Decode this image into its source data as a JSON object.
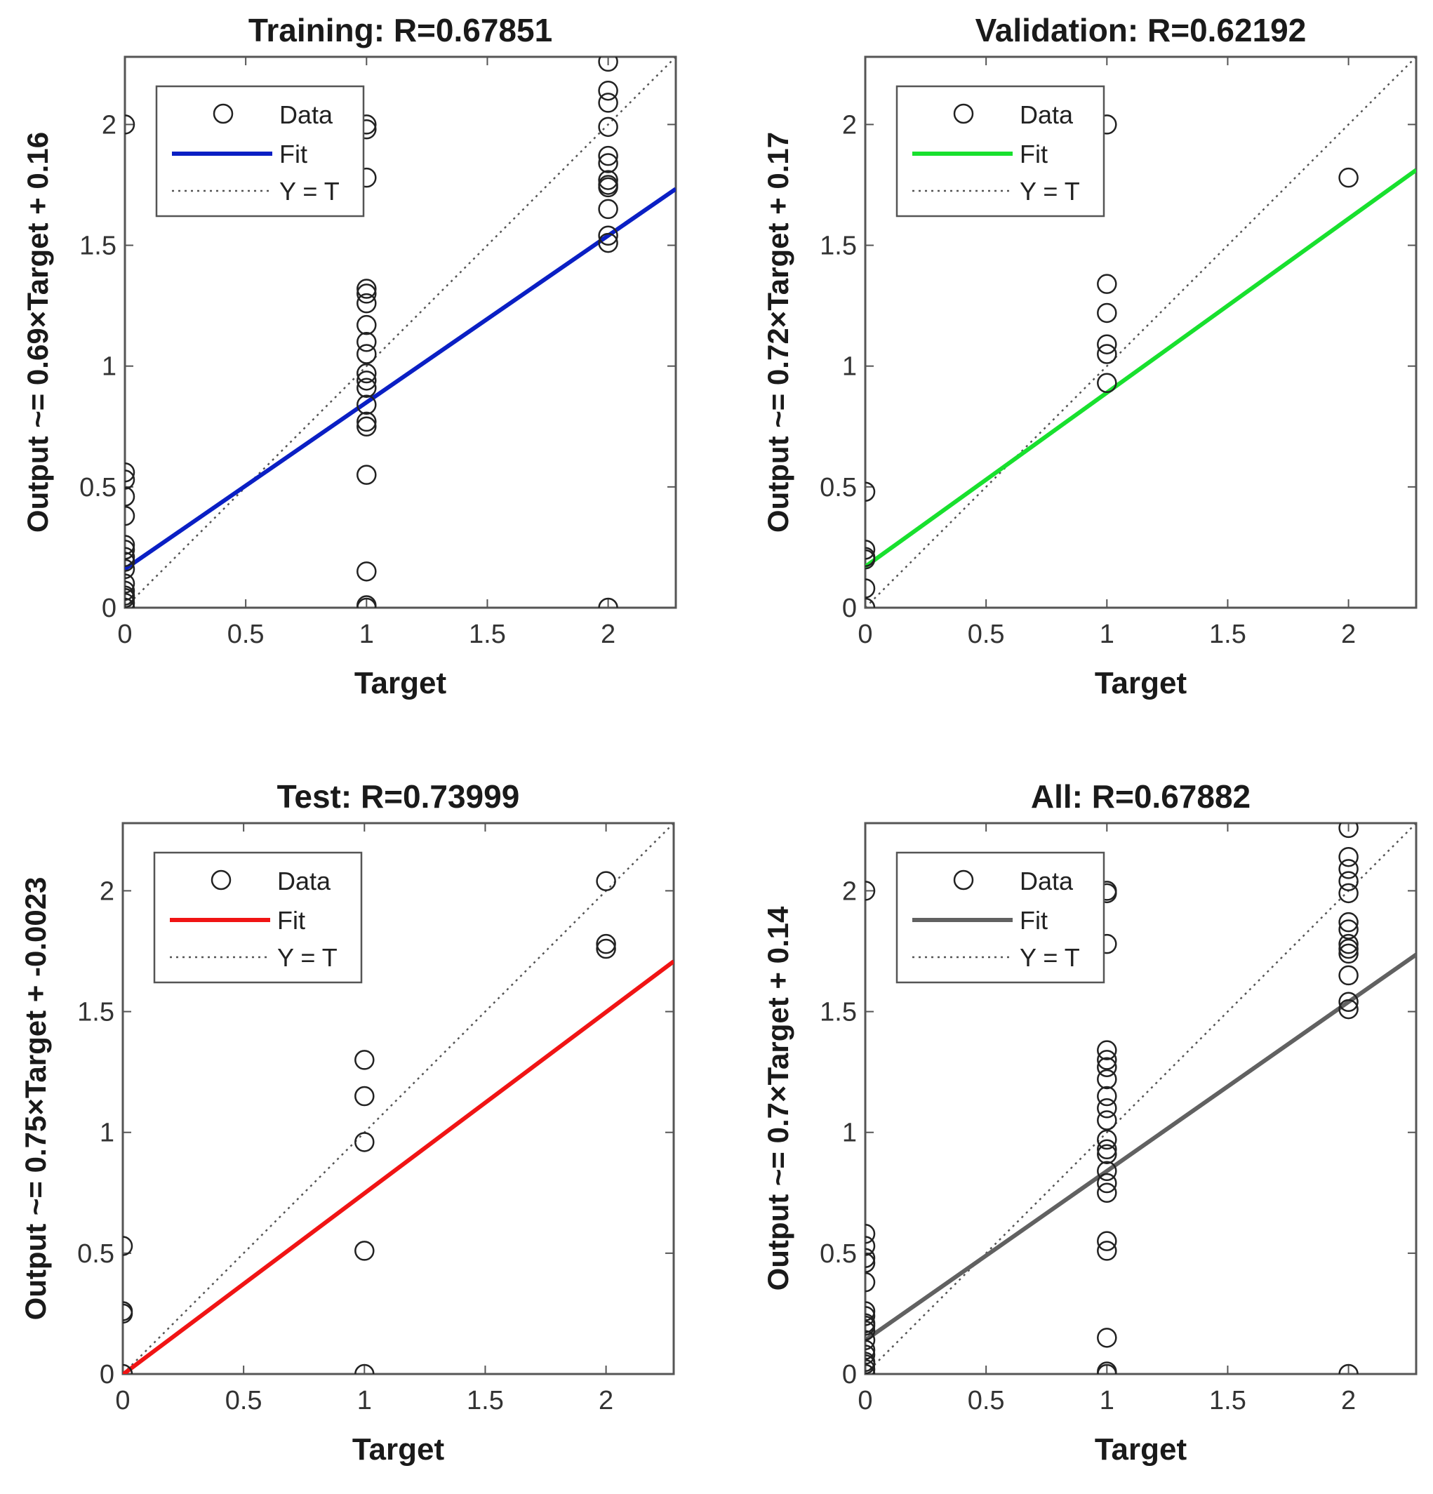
{
  "figure": {
    "layout": "2x2 regression plots"
  },
  "legend_labels": {
    "data": "Data",
    "fit": "Fit",
    "identity": "Y = T"
  },
  "colors": {
    "training_fit": "#0a1fc4",
    "validation_fit": "#18e02e",
    "test_fit": "#f01414",
    "all_fit": "#616161",
    "marker": "#222222",
    "identity": "#555555",
    "axes": "#555555"
  },
  "chart_data": [
    {
      "type": "scatter",
      "title": "Training: R=0.67851",
      "xlabel": "Target",
      "ylabel": "Output ~= 0.69×Target + 0.16",
      "xlim": [
        0,
        2.28
      ],
      "ylim": [
        0,
        2.28
      ],
      "xticks": [
        0,
        0.5,
        1,
        1.5,
        2
      ],
      "xtick_labels": [
        "0",
        "0.5",
        "1",
        "1.5",
        "2"
      ],
      "yticks": [
        0,
        0.5,
        1,
        1.5,
        2
      ],
      "ytick_labels": [
        "0",
        "0.5",
        "1",
        "1.5",
        "2"
      ],
      "fit": {
        "slope": 0.69,
        "intercept": 0.16,
        "color": "#0a1fc4"
      },
      "series": [
        {
          "name": "Data",
          "x": [
            0,
            0,
            0,
            0,
            0,
            0,
            0,
            0,
            0,
            0,
            0,
            0,
            0,
            0,
            0,
            0,
            1,
            1,
            1,
            1,
            1,
            1,
            1,
            1,
            1,
            1,
            1,
            1,
            1,
            1,
            1,
            1,
            1,
            1,
            1,
            2,
            2,
            2,
            2,
            2,
            2,
            2,
            2,
            2,
            2,
            2,
            2,
            2
          ],
          "y": [
            2.0,
            0.56,
            0.53,
            0.46,
            0.38,
            0.26,
            0.24,
            0.21,
            0.19,
            0.16,
            0.1,
            0.07,
            0.05,
            0.04,
            0.02,
            0.0,
            2.0,
            1.98,
            1.78,
            1.32,
            1.3,
            1.26,
            1.17,
            1.1,
            1.05,
            0.97,
            0.94,
            0.91,
            0.84,
            0.77,
            0.75,
            0.55,
            0.15,
            0.01,
            0.0,
            2.26,
            2.14,
            2.09,
            1.99,
            1.87,
            1.84,
            1.77,
            1.75,
            1.74,
            1.65,
            1.54,
            1.51,
            0.0
          ]
        }
      ]
    },
    {
      "type": "scatter",
      "title": "Validation: R=0.62192",
      "xlabel": "Target",
      "ylabel": "Output ~= 0.72×Target + 0.17",
      "xlim": [
        0,
        2.28
      ],
      "ylim": [
        0,
        2.28
      ],
      "xticks": [
        0,
        0.5,
        1,
        1.5,
        2
      ],
      "xtick_labels": [
        "0",
        "0.5",
        "1",
        "1.5",
        "2"
      ],
      "yticks": [
        0,
        0.5,
        1,
        1.5,
        2
      ],
      "ytick_labels": [
        "0",
        "0.5",
        "1",
        "1.5",
        "2"
      ],
      "fit": {
        "slope": 0.72,
        "intercept": 0.17,
        "color": "#18e02e"
      },
      "series": [
        {
          "name": "Data",
          "x": [
            0,
            0,
            0,
            0,
            0,
            0,
            1,
            1,
            1,
            1,
            1,
            1,
            2
          ],
          "y": [
            0.48,
            0.24,
            0.21,
            0.2,
            0.08,
            0.0,
            2.0,
            1.34,
            1.22,
            1.09,
            1.05,
            0.93,
            1.78
          ]
        }
      ]
    },
    {
      "type": "scatter",
      "title": "Test: R=0.73999",
      "xlabel": "Target",
      "ylabel": "Output ~= 0.75×Target + -0.0023",
      "xlim": [
        0,
        2.28
      ],
      "ylim": [
        0,
        2.28
      ],
      "xticks": [
        0,
        0.5,
        1,
        1.5,
        2
      ],
      "xtick_labels": [
        "0",
        "0.5",
        "1",
        "1.5",
        "2"
      ],
      "yticks": [
        0,
        0.5,
        1,
        1.5,
        2
      ],
      "ytick_labels": [
        "0",
        "0.5",
        "1",
        "1.5",
        "2"
      ],
      "fit": {
        "slope": 0.75,
        "intercept": -0.0023,
        "color": "#f01414"
      },
      "series": [
        {
          "name": "Data",
          "x": [
            0,
            0,
            0,
            0,
            1,
            1,
            1,
            1,
            1,
            2,
            2,
            2
          ],
          "y": [
            0.53,
            0.26,
            0.25,
            0.0,
            1.3,
            1.15,
            0.96,
            0.51,
            0.0,
            2.04,
            1.78,
            1.76
          ]
        }
      ]
    },
    {
      "type": "scatter",
      "title": "All: R=0.67882",
      "xlabel": "Target",
      "ylabel": "Output ~= 0.7×Target + 0.14",
      "xlim": [
        0,
        2.28
      ],
      "ylim": [
        0,
        2.28
      ],
      "xticks": [
        0,
        0.5,
        1,
        1.5,
        2
      ],
      "xtick_labels": [
        "0",
        "0.5",
        "1",
        "1.5",
        "2"
      ],
      "yticks": [
        0,
        0.5,
        1,
        1.5,
        2
      ],
      "ytick_labels": [
        "0",
        "0.5",
        "1",
        "1.5",
        "2"
      ],
      "fit": {
        "slope": 0.7,
        "intercept": 0.14,
        "color": "#616161"
      },
      "series": [
        {
          "name": "Data",
          "x": [
            0,
            0,
            0,
            0,
            0,
            0,
            0,
            0,
            0,
            0,
            0,
            0,
            0,
            0,
            0,
            0,
            0,
            0,
            1,
            1,
            1,
            1,
            1,
            1,
            1,
            1,
            1,
            1,
            1,
            1,
            1,
            1,
            1,
            1,
            1,
            1,
            1,
            1,
            1,
            2,
            2,
            2,
            2,
            2,
            2,
            2,
            2,
            2,
            2,
            2,
            2,
            2,
            2
          ],
          "y": [
            2.0,
            0.58,
            0.53,
            0.48,
            0.46,
            0.38,
            0.26,
            0.24,
            0.21,
            0.2,
            0.18,
            0.14,
            0.1,
            0.08,
            0.05,
            0.04,
            0.02,
            0.0,
            2.0,
            1.99,
            1.78,
            1.34,
            1.3,
            1.27,
            1.22,
            1.15,
            1.1,
            1.05,
            0.97,
            0.93,
            0.91,
            0.84,
            0.79,
            0.75,
            0.55,
            0.51,
            0.15,
            0.01,
            0.0,
            2.26,
            2.14,
            2.09,
            2.04,
            1.99,
            1.87,
            1.84,
            1.78,
            1.76,
            1.74,
            1.65,
            1.54,
            1.51,
            0.0
          ]
        }
      ]
    }
  ]
}
